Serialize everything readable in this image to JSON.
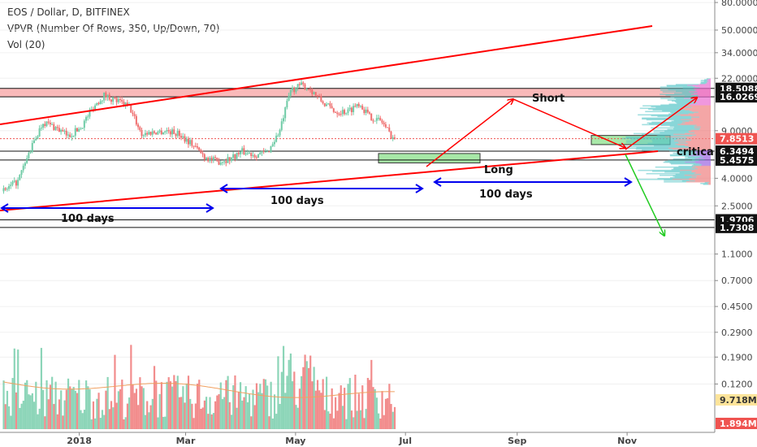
{
  "header": {
    "symbol_line": "EOS / Dollar, D, BITFINEX",
    "vpvr_line": "VPVR (Number Of Rows, 350, Up/Down, 70)",
    "vol_line": "Vol (20)"
  },
  "colors": {
    "up": "#6fcba6",
    "down": "#ef6f6f",
    "trend_line": "#ff0000",
    "measure_arrow": "#0000ee",
    "short_zone": "#f7a1a1",
    "long_zone": "#a8e8a8",
    "green_arrow": "#22cc22",
    "vol_ma": "#f0a060",
    "price_badge": "#ef5350",
    "vol_badge_up": "#f0b400",
    "vol_badge_down": "#ef5350"
  },
  "chart_data": {
    "type": "candlestick",
    "title": "EOS / Dollar, D, BITFINEX",
    "indicators": [
      "VPVR (Number Of Rows, 350, Up/Down, 70)",
      "Vol (20)"
    ],
    "y_scale": "log",
    "y_tick_labels": [
      "80.0000",
      "50.0000",
      "34.0000",
      "22.0000",
      "9.0000",
      "4.0000",
      "2.5000",
      "1.1000",
      "0.7000",
      "0.4500",
      "0.2900",
      "0.1900",
      "0.1200"
    ],
    "y_tick_values": [
      80,
      50,
      34,
      22,
      9,
      4,
      2.5,
      1.1,
      0.7,
      0.45,
      0.29,
      0.19,
      0.12
    ],
    "x_tick_labels": [
      "2018",
      "Mar",
      "May",
      "Jul",
      "Sep",
      "Nov"
    ],
    "x_tick_dates": [
      "2018-01-01",
      "2018-03-01",
      "2018-05-01",
      "2018-07-01",
      "2018-09-01",
      "2018-11-01"
    ],
    "x_range": [
      "2017-11-18",
      "2018-11-28"
    ],
    "last_price": "7.8513",
    "price_levels": [
      {
        "label": "18.5088",
        "value": 18.5088
      },
      {
        "label": "16.0269",
        "value": 16.0269
      },
      {
        "label": "6.3494",
        "value": 6.3494
      },
      {
        "label": "5.4575",
        "value": 5.4575
      },
      {
        "label": "1.9706",
        "value": 1.9706
      },
      {
        "label": "1.7308",
        "value": 1.7308
      }
    ],
    "volume_badges": [
      {
        "label": "9.718M",
        "kind": "up"
      },
      {
        "label": "1.894M",
        "kind": "down"
      }
    ],
    "price_path": [
      {
        "date": "2017-11-20",
        "price": 3.2
      },
      {
        "date": "2017-11-28",
        "price": 3.8
      },
      {
        "date": "2017-12-05",
        "price": 6.5
      },
      {
        "date": "2017-12-12",
        "price": 10.5
      },
      {
        "date": "2017-12-19",
        "price": 9.5
      },
      {
        "date": "2017-12-26",
        "price": 8.2
      },
      {
        "date": "2018-01-02",
        "price": 9.5
      },
      {
        "date": "2018-01-09",
        "price": 13.5
      },
      {
        "date": "2018-01-15",
        "price": 16.5
      },
      {
        "date": "2018-01-22",
        "price": 15.0
      },
      {
        "date": "2018-01-29",
        "price": 13.5
      },
      {
        "date": "2018-02-05",
        "price": 8.5
      },
      {
        "date": "2018-02-12",
        "price": 8.8
      },
      {
        "date": "2018-02-19",
        "price": 9.0
      },
      {
        "date": "2018-02-26",
        "price": 8.5
      },
      {
        "date": "2018-03-05",
        "price": 7.2
      },
      {
        "date": "2018-03-12",
        "price": 5.8
      },
      {
        "date": "2018-03-19",
        "price": 5.3
      },
      {
        "date": "2018-03-26",
        "price": 5.6
      },
      {
        "date": "2018-04-02",
        "price": 6.3
      },
      {
        "date": "2018-04-09",
        "price": 6.0
      },
      {
        "date": "2018-04-16",
        "price": 6.2
      },
      {
        "date": "2018-04-23",
        "price": 9.0
      },
      {
        "date": "2018-04-29",
        "price": 18.0
      },
      {
        "date": "2018-05-05",
        "price": 19.5
      },
      {
        "date": "2018-05-10",
        "price": 18.3
      },
      {
        "date": "2018-05-17",
        "price": 14.5
      },
      {
        "date": "2018-05-24",
        "price": 12.5
      },
      {
        "date": "2018-05-31",
        "price": 12.5
      },
      {
        "date": "2018-06-06",
        "price": 14.5
      },
      {
        "date": "2018-06-12",
        "price": 11.5
      },
      {
        "date": "2018-06-19",
        "price": 10.5
      },
      {
        "date": "2018-06-24",
        "price": 8.3
      },
      {
        "date": "2018-06-26",
        "price": 7.85
      }
    ],
    "annotations": [
      {
        "type": "text",
        "text": "Short"
      },
      {
        "type": "text",
        "text": "Long"
      },
      {
        "type": "text",
        "text": "critica"
      },
      {
        "type": "date_range",
        "label": "100 days",
        "start": "2017-11-18",
        "end": "2018-03-12"
      },
      {
        "type": "date_range",
        "label": "100 days",
        "start": "2018-03-12",
        "end": "2018-06-30"
      },
      {
        "type": "date_range",
        "label": "100 days",
        "start": "2018-07-01",
        "end": "2018-10-15"
      }
    ]
  }
}
